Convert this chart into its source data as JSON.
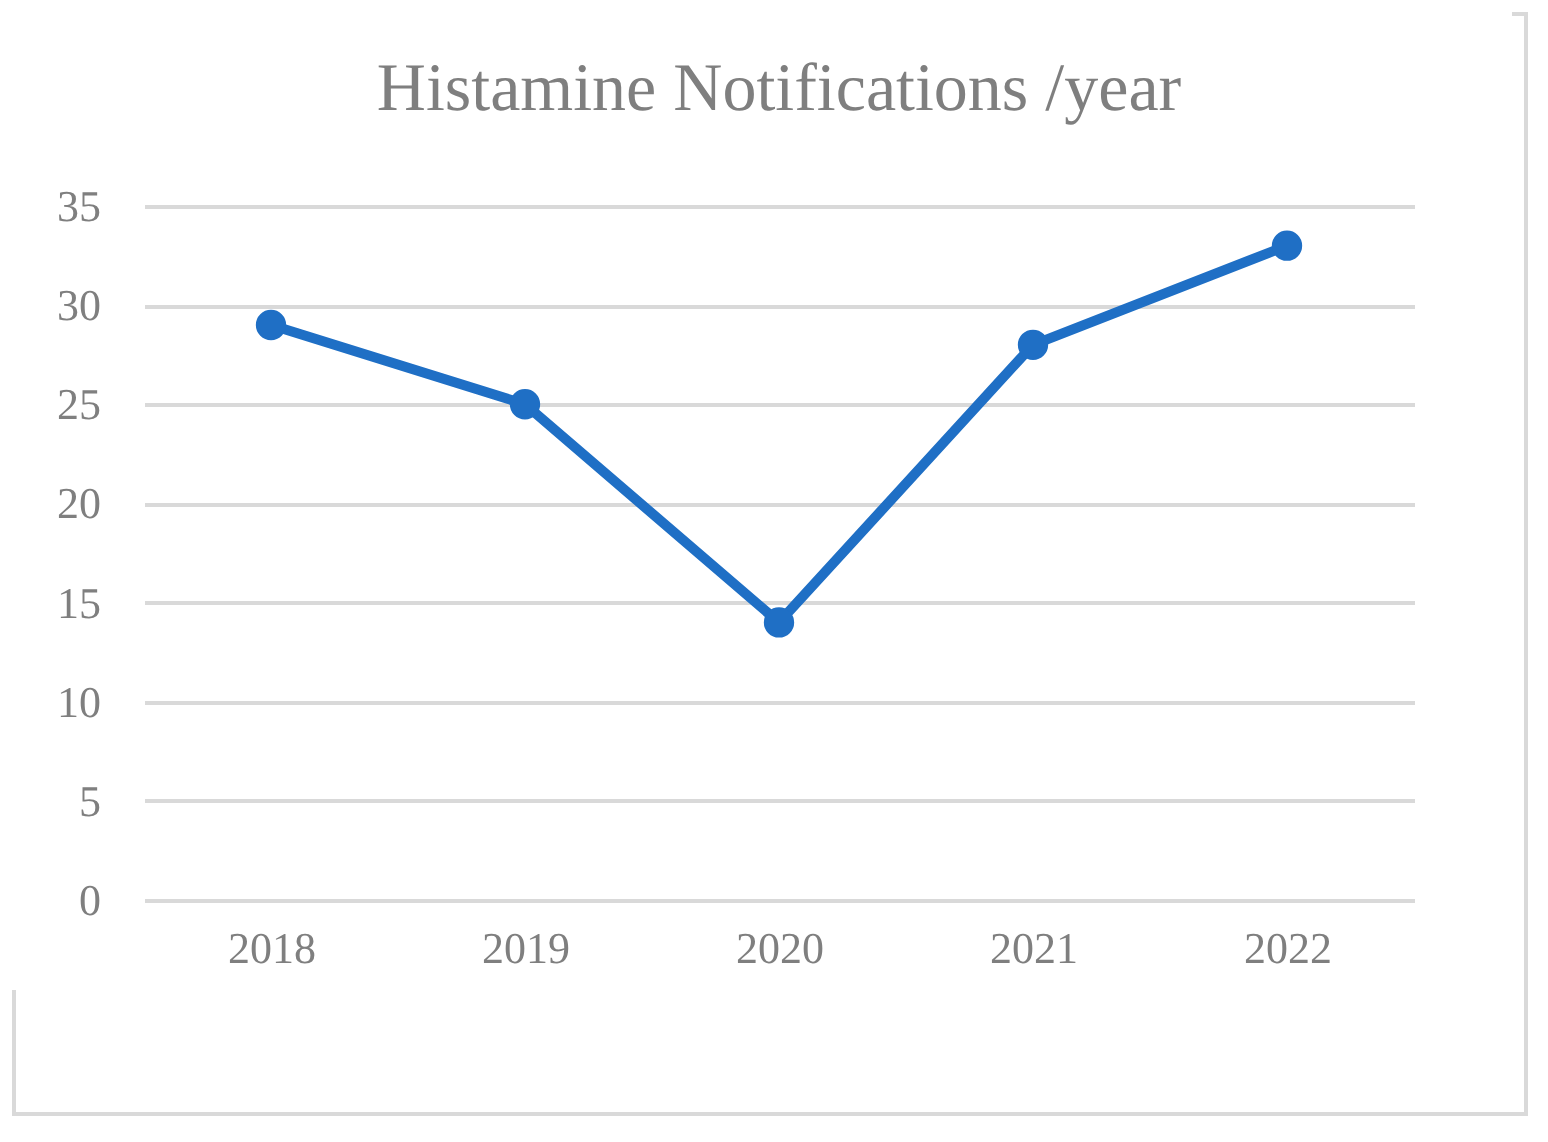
{
  "chart_data": {
    "type": "line",
    "title": "Histamine Notifications /year",
    "categories": [
      "2018",
      "2019",
      "2020",
      "2021",
      "2022"
    ],
    "series": [
      {
        "color": "#1f6fc5",
        "values": [
          29,
          25,
          14,
          28,
          33
        ]
      }
    ],
    "ylim": [
      0,
      35
    ],
    "yticks": [
      0,
      5,
      10,
      15,
      20,
      25,
      30,
      35
    ],
    "grid": "y",
    "marker": "circle"
  }
}
